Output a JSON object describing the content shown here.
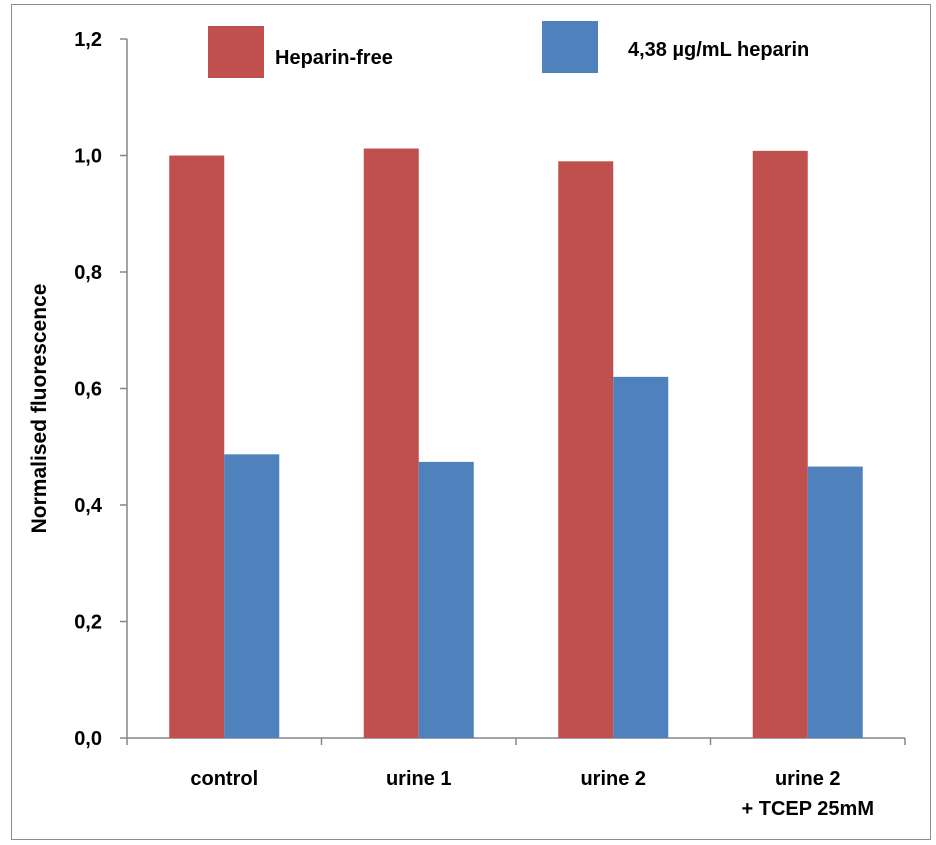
{
  "chart_data": {
    "type": "bar",
    "categories": [
      [
        "control"
      ],
      [
        "urine 1"
      ],
      [
        "urine 2"
      ],
      [
        "urine 2",
        "+ TCEP 25mM"
      ]
    ],
    "series": [
      {
        "name": "Heparin-free",
        "color": "#c0504d",
        "values": [
          1.0,
          1.012,
          0.99,
          1.008
        ]
      },
      {
        "name": "4,38 µg/mL heparin",
        "color": "#4f81bd",
        "values": [
          0.487,
          0.474,
          0.62,
          0.466
        ]
      }
    ],
    "title": "",
    "xlabel": "",
    "ylabel": "Normalised fluorescence",
    "ylim": [
      0,
      1.2
    ],
    "yticks": [
      "0,0",
      "0,2",
      "0,4",
      "0,6",
      "0,8",
      "1,0",
      "1,2"
    ],
    "legend_position": "top",
    "grid": false
  }
}
